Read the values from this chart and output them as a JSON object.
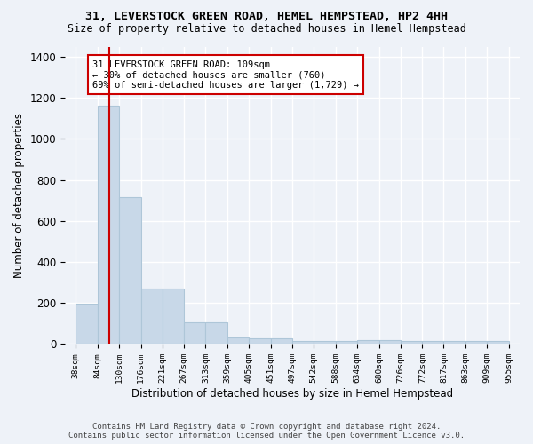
{
  "title1": "31, LEVERSTOCK GREEN ROAD, HEMEL HEMPSTEAD, HP2 4HH",
  "title2": "Size of property relative to detached houses in Hemel Hempstead",
  "xlabel": "Distribution of detached houses by size in Hemel Hempstead",
  "ylabel": "Number of detached properties",
  "bar_edges": [
    38,
    84,
    130,
    176,
    221,
    267,
    313,
    359,
    405,
    451,
    497,
    542,
    588,
    634,
    680,
    726,
    772,
    817,
    863,
    909,
    955
  ],
  "bar_heights": [
    196,
    1160,
    716,
    270,
    270,
    107,
    107,
    30,
    25,
    25,
    13,
    13,
    13,
    20,
    20,
    13,
    13,
    13,
    13,
    13
  ],
  "bar_color": "#c8d8e8",
  "bar_edge_color": "#aec6d8",
  "vline_x": 109,
  "vline_color": "#cc0000",
  "annotation_text": "31 LEVERSTOCK GREEN ROAD: 109sqm\n← 30% of detached houses are smaller (760)\n69% of semi-detached houses are larger (1,729) →",
  "annotation_box_color": "#ffffff",
  "annotation_box_edge": "#cc0000",
  "tick_labels": [
    "38sqm",
    "84sqm",
    "130sqm",
    "176sqm",
    "221sqm",
    "267sqm",
    "313sqm",
    "359sqm",
    "405sqm",
    "451sqm",
    "497sqm",
    "542sqm",
    "588sqm",
    "634sqm",
    "680sqm",
    "726sqm",
    "772sqm",
    "817sqm",
    "863sqm",
    "909sqm",
    "955sqm"
  ],
  "ylim": [
    0,
    1450
  ],
  "yticks": [
    0,
    200,
    400,
    600,
    800,
    1000,
    1200,
    1400
  ],
  "bg_color": "#eef2f8",
  "grid_color": "#ffffff",
  "footer": "Contains HM Land Registry data © Crown copyright and database right 2024.\nContains public sector information licensed under the Open Government Licence v3.0."
}
